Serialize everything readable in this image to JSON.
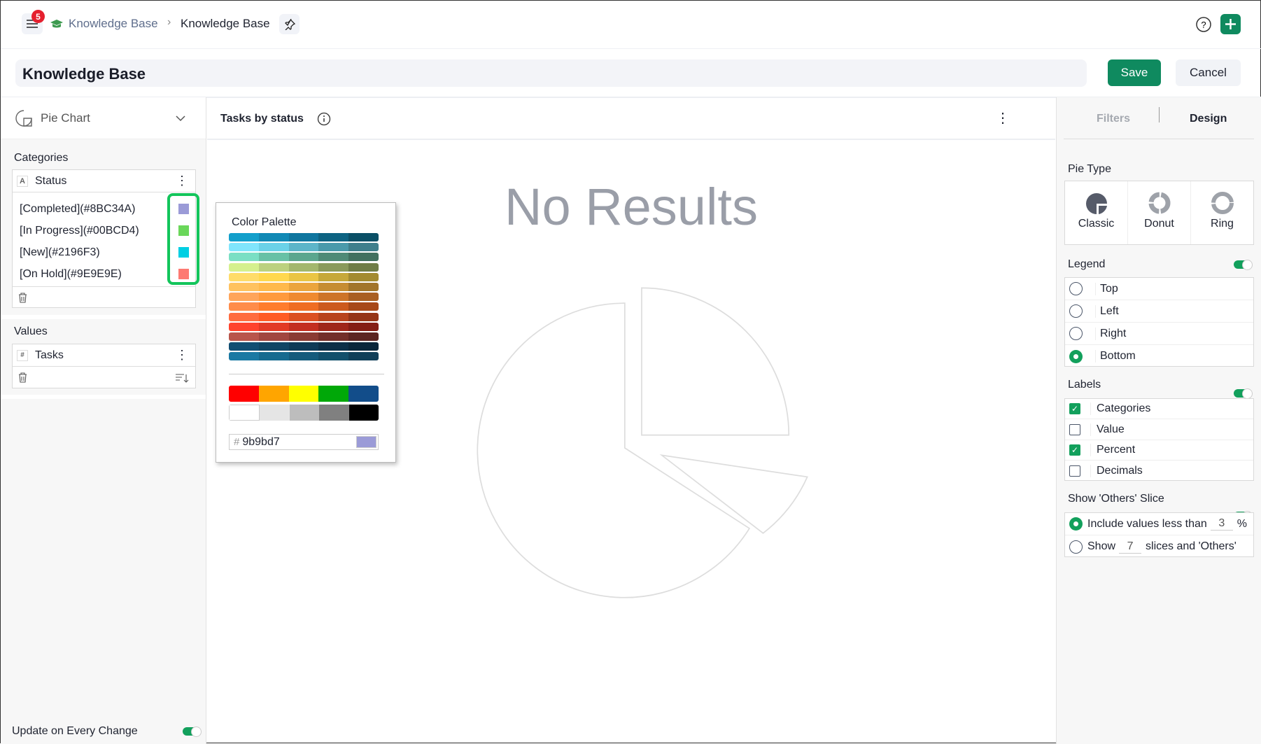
{
  "header": {
    "notification_count": "5",
    "breadcrumb_parent": "Knowledge Base",
    "breadcrumb_current": "Knowledge Base",
    "brand_color": "#0f8a5f"
  },
  "titlebar": {
    "title": "Knowledge Base",
    "save_label": "Save",
    "cancel_label": "Cancel"
  },
  "left": {
    "chart_type": "Pie Chart",
    "categories_label": "Categories",
    "category_field": "Status",
    "category_items": [
      {
        "label": "[Completed](#8BC34A)",
        "color": "#9b9bd7"
      },
      {
        "label": "[In Progress](#00BCD4)",
        "color": "#6ad75a"
      },
      {
        "label": "[New](#2196F3)",
        "color": "#00cfe3"
      },
      {
        "label": "[On Hold](#9E9E9E)",
        "color": "#fd7a72"
      }
    ],
    "values_label": "Values",
    "value_field": "Tasks",
    "update_label": "Update on Every Change",
    "update_on": true
  },
  "chart": {
    "title": "Tasks by status",
    "empty_text": "No Results"
  },
  "palette": {
    "title": "Color Palette",
    "hex_value": "9b9bd7",
    "hex_prefix": "#",
    "selected_color": "#9b9bd7",
    "rows": [
      [
        "#139fcb",
        "#1189b5",
        "#10769f",
        "#0d6382",
        "#0a4f66"
      ],
      [
        "#80e5fc",
        "#6bd2e8",
        "#5db5c9",
        "#4a9aab",
        "#3f7f8c"
      ],
      [
        "#7adfc4",
        "#68c1a6",
        "#5ba68e",
        "#4e8a76",
        "#41705f"
      ],
      [
        "#d5f08e",
        "#bcd17f",
        "#a3b76d",
        "#8a9a5b",
        "#6f7d47"
      ],
      [
        "#ffdc6a",
        "#ffd84f",
        "#eac545",
        "#c6a83a",
        "#a38b31"
      ],
      [
        "#ffc25f",
        "#ffb94b",
        "#eba53d",
        "#c68d33",
        "#a2752b"
      ],
      [
        "#ffa55a",
        "#ff9a3d",
        "#ef8a2f",
        "#cd7428",
        "#a95f22"
      ],
      [
        "#ff8c4a",
        "#ff7d2d",
        "#ef6d22",
        "#cc5a1e",
        "#a74818"
      ],
      [
        "#ff6c3f",
        "#ff5c25",
        "#db5022",
        "#b8441d",
        "#953517"
      ],
      [
        "#ff432d",
        "#e23a25",
        "#c32f20",
        "#9f2619",
        "#841d14"
      ],
      [
        "#b9554b",
        "#a1463f",
        "#8a3b33",
        "#722f29",
        "#5c2521"
      ],
      [
        "#114e72",
        "#104564",
        "#0e3a56",
        "#0c2f47",
        "#0a263a"
      ],
      [
        "#1a79a3",
        "#166a8f",
        "#145b7c",
        "#124f6b",
        "#103f58"
      ]
    ],
    "basic": [
      "#ff0000",
      "#ffa500",
      "#ffff00",
      "#00a808",
      "#124d8a"
    ],
    "grays": [
      "#ffffff",
      "#e5e5e5",
      "#bdbdbd",
      "#808080",
      "#000000"
    ]
  },
  "right": {
    "tabs": [
      "Filters",
      "Design"
    ],
    "active_tab": "Design",
    "pie_type_label": "Pie Type",
    "pie_types": [
      "Classic",
      "Donut",
      "Ring"
    ],
    "pie_type_selected": "Classic",
    "legend_label": "Legend",
    "legend_on": true,
    "legend_options": [
      "Top",
      "Left",
      "Right",
      "Bottom"
    ],
    "legend_selected": "Bottom",
    "labels_label": "Labels",
    "labels_on": true,
    "label_options": [
      {
        "label": "Categories",
        "checked": true
      },
      {
        "label": "Value",
        "checked": false
      },
      {
        "label": "Percent",
        "checked": true
      },
      {
        "label": "Decimals",
        "checked": false
      }
    ],
    "others_label": "Show 'Others' Slice",
    "others_on": true,
    "others_opt1_pre": "Include values less than",
    "others_opt1_value": "3",
    "others_opt1_post": "%",
    "others_opt2_pre": "Show",
    "others_opt2_value": "7",
    "others_opt2_post": "slices and 'Others'",
    "others_selected": 1
  }
}
